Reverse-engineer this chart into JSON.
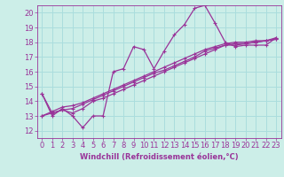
{
  "xlabel": "Windchill (Refroidissement éolien,°C)",
  "bg_color": "#cceee8",
  "grid_color": "#aadddd",
  "line_color": "#993399",
  "xlim": [
    -0.5,
    23.5
  ],
  "ylim": [
    11.5,
    20.5
  ],
  "xticks": [
    0,
    1,
    2,
    3,
    4,
    5,
    6,
    7,
    8,
    9,
    10,
    11,
    12,
    13,
    14,
    15,
    16,
    17,
    18,
    19,
    20,
    21,
    22,
    23
  ],
  "yticks": [
    12,
    13,
    14,
    15,
    16,
    17,
    18,
    19,
    20
  ],
  "series": [
    [
      14.5,
      13.0,
      13.5,
      13.0,
      12.2,
      13.0,
      13.0,
      16.0,
      16.2,
      17.7,
      17.5,
      16.2,
      17.4,
      18.5,
      19.2,
      20.3,
      20.5,
      19.3,
      18.0,
      17.7,
      17.8,
      17.8,
      17.8,
      18.3
    ],
    [
      14.5,
      13.2,
      13.4,
      13.2,
      13.5,
      14.0,
      14.2,
      14.5,
      14.8,
      15.1,
      15.4,
      15.7,
      16.0,
      16.3,
      16.6,
      16.9,
      17.2,
      17.5,
      17.8,
      17.8,
      17.9,
      18.0,
      18.1,
      18.2
    ],
    [
      13.0,
      13.2,
      13.4,
      13.5,
      13.8,
      14.1,
      14.4,
      14.7,
      15.0,
      15.3,
      15.6,
      15.9,
      16.1,
      16.4,
      16.7,
      17.0,
      17.4,
      17.6,
      17.8,
      17.9,
      17.9,
      18.0,
      18.1,
      18.2
    ],
    [
      13.0,
      13.3,
      13.6,
      13.7,
      13.9,
      14.2,
      14.5,
      14.8,
      15.1,
      15.4,
      15.7,
      16.0,
      16.3,
      16.6,
      16.9,
      17.2,
      17.5,
      17.7,
      17.9,
      18.0,
      18.0,
      18.1,
      18.1,
      18.3
    ]
  ],
  "tick_fontsize": 6,
  "xlabel_fontsize": 6
}
